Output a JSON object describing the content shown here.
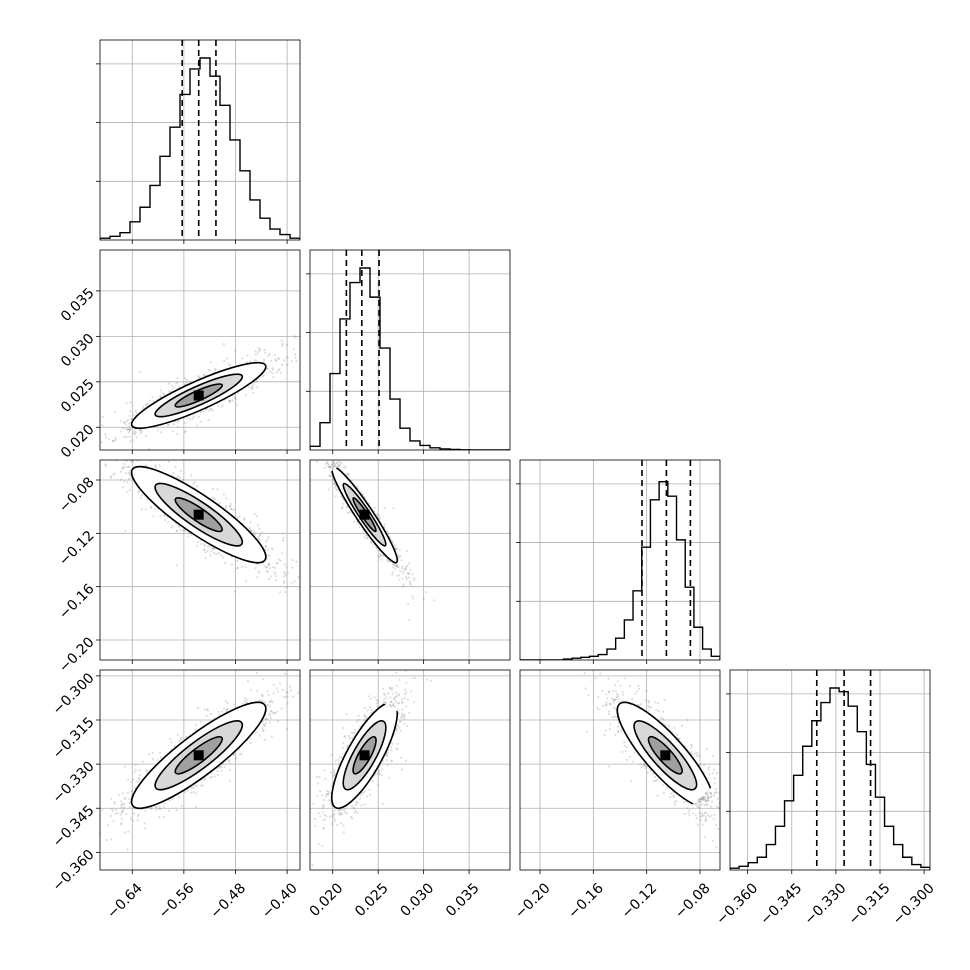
{
  "chart_data": {
    "type": "corner",
    "parameters": [
      {
        "mean": -0.537,
        "sd": 0.052,
        "range": [
          -0.69,
          -0.38
        ],
        "ticks": [
          -0.64,
          -0.56,
          -0.48,
          -0.4
        ],
        "tick_labels": [
          "−0.64",
          "−0.56",
          "−0.48",
          "−0.40"
        ],
        "quantiles": [
          -0.5626,
          -0.537,
          -0.5103
        ],
        "hist_counts": [
          0.01,
          0.02,
          0.04,
          0.1,
          0.18,
          0.3,
          0.46,
          0.62,
          0.8,
          0.94,
          1.0,
          0.9,
          0.74,
          0.55,
          0.38,
          0.22,
          0.12,
          0.06,
          0.03,
          0.01
        ],
        "label": ""
      },
      {
        "mean": 0.0235,
        "sd": 0.0018,
        "range": [
          0.0175,
          0.0395
        ],
        "ticks": [
          0.02,
          0.025,
          0.03,
          0.035
        ],
        "tick_labels": [
          "0.020",
          "0.025",
          "0.030",
          "0.035"
        ],
        "quantiles": [
          0.0215,
          0.0232,
          0.0251
        ],
        "hist_counts": [
          0.02,
          0.15,
          0.42,
          0.72,
          0.92,
          1.0,
          0.84,
          0.56,
          0.28,
          0.12,
          0.05,
          0.025,
          0.012,
          0.006,
          0.003,
          0.001,
          0.0,
          0.0,
          0.0,
          0.0
        ],
        "label": ""
      },
      {
        "mean": -0.106,
        "sd": 0.018,
        "range": [
          -0.215,
          -0.065
        ],
        "ticks": [
          -0.2,
          -0.16,
          -0.12,
          -0.08
        ],
        "tick_labels": [
          "−0.20",
          "−0.16",
          "−0.12",
          "−0.08"
        ],
        "quantiles": [
          -0.1235,
          -0.1052,
          -0.0872
        ],
        "hist_counts": [
          0.0,
          0.0,
          0.0,
          0.0,
          0.0,
          0.005,
          0.01,
          0.015,
          0.02,
          0.03,
          0.06,
          0.12,
          0.22,
          0.38,
          0.62,
          0.88,
          0.98,
          0.9,
          0.66,
          0.4,
          0.18,
          0.06,
          0.02
        ],
        "label": ""
      },
      {
        "mean": -0.327,
        "sd": 0.009,
        "range": [
          -0.366,
          -0.298
        ],
        "ticks": [
          -0.36,
          -0.345,
          -0.33,
          -0.315,
          -0.3
        ],
        "tick_labels": [
          "−0.360",
          "−0.345",
          "−0.330",
          "−0.315",
          "−0.300"
        ],
        "quantiles": [
          -0.3365,
          -0.3272,
          -0.3182
        ],
        "hist_counts": [
          0.01,
          0.02,
          0.04,
          0.07,
          0.14,
          0.24,
          0.38,
          0.52,
          0.68,
          0.82,
          0.92,
          1.0,
          0.98,
          0.9,
          0.76,
          0.58,
          0.4,
          0.24,
          0.14,
          0.07,
          0.03,
          0.015
        ],
        "label": ""
      }
    ],
    "correlations": [
      [
        1,
        0.88,
        -0.88,
        0.88
      ],
      [
        0.88,
        1,
        -0.95,
        0.8
      ],
      [
        -0.88,
        -0.95,
        1,
        -0.85
      ],
      [
        0.88,
        0.8,
        -0.85,
        1
      ]
    ],
    "hist_yticks": 3,
    "grid": true,
    "quantile_style": "dashed"
  }
}
